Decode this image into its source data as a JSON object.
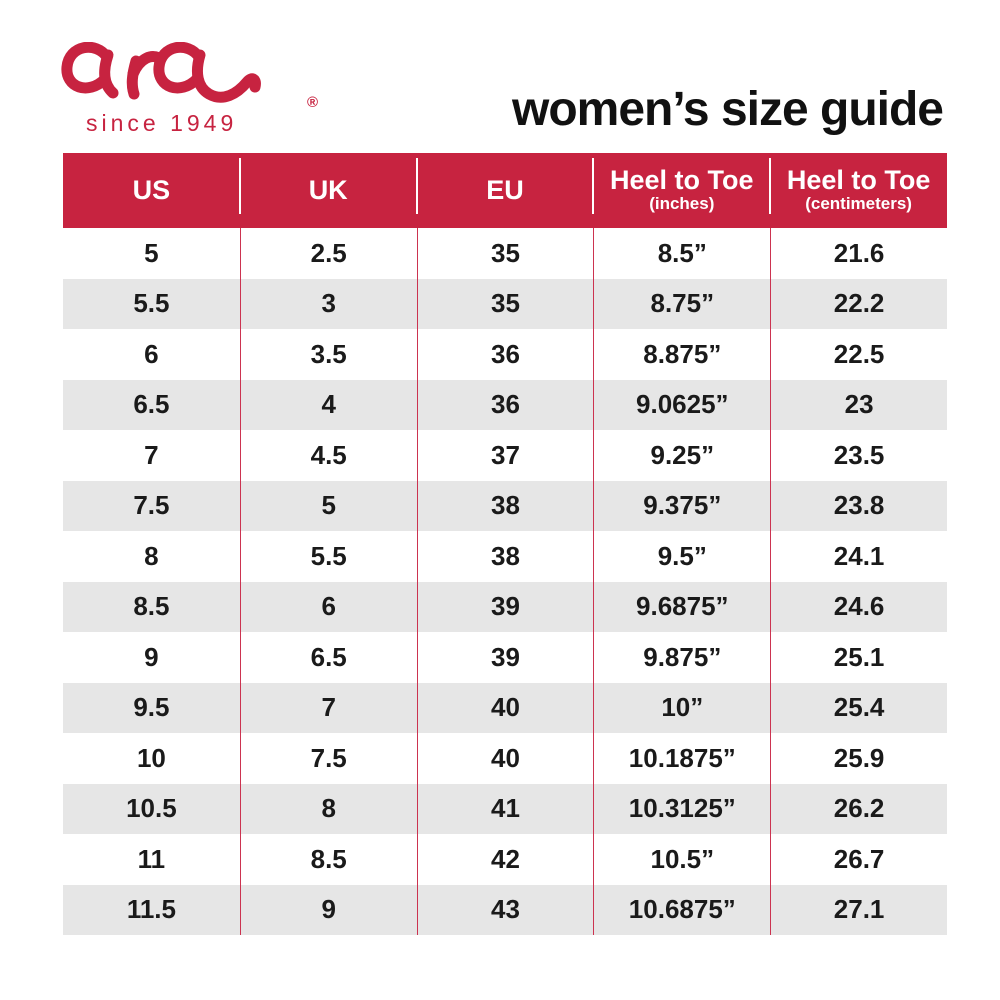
{
  "logo": {
    "brand": "ara",
    "registered": "®",
    "tagline": "since 1949"
  },
  "colors": {
    "brand_red": "#C72340",
    "separator_red": "#CC3350",
    "alt_row_gray": "#E6E6E6",
    "header_text": "#FFFFFF",
    "body_text": "#1A1A1A"
  },
  "chart_data": {
    "type": "table",
    "title": "women’s size guide",
    "legend_position": "none",
    "columns": [
      {
        "label": "US",
        "sub": ""
      },
      {
        "label": "UK",
        "sub": ""
      },
      {
        "label": "EU",
        "sub": ""
      },
      {
        "label": "Heel to Toe",
        "sub": "(inches)"
      },
      {
        "label": "Heel to Toe",
        "sub": "(centimeters)"
      }
    ],
    "rows": [
      [
        "5",
        "2.5",
        "35",
        "8.5”",
        "21.6"
      ],
      [
        "5.5",
        "3",
        "35",
        "8.75”",
        "22.2"
      ],
      [
        "6",
        "3.5",
        "36",
        "8.875”",
        "22.5"
      ],
      [
        "6.5",
        "4",
        "36",
        "9.0625”",
        "23"
      ],
      [
        "7",
        "4.5",
        "37",
        "9.25”",
        "23.5"
      ],
      [
        "7.5",
        "5",
        "38",
        "9.375”",
        "23.8"
      ],
      [
        "8",
        "5.5",
        "38",
        "9.5”",
        "24.1"
      ],
      [
        "8.5",
        "6",
        "39",
        "9.6875”",
        "24.6"
      ],
      [
        "9",
        "6.5",
        "39",
        "9.875”",
        "25.1"
      ],
      [
        "9.5",
        "7",
        "40",
        "10”",
        "25.4"
      ],
      [
        "10",
        "7.5",
        "40",
        "10.1875”",
        "25.9"
      ],
      [
        "10.5",
        "8",
        "41",
        "10.3125”",
        "26.2"
      ],
      [
        "11",
        "8.5",
        "42",
        "10.5”",
        "26.7"
      ],
      [
        "11.5",
        "9",
        "43",
        "10.6875”",
        "27.1"
      ]
    ]
  }
}
